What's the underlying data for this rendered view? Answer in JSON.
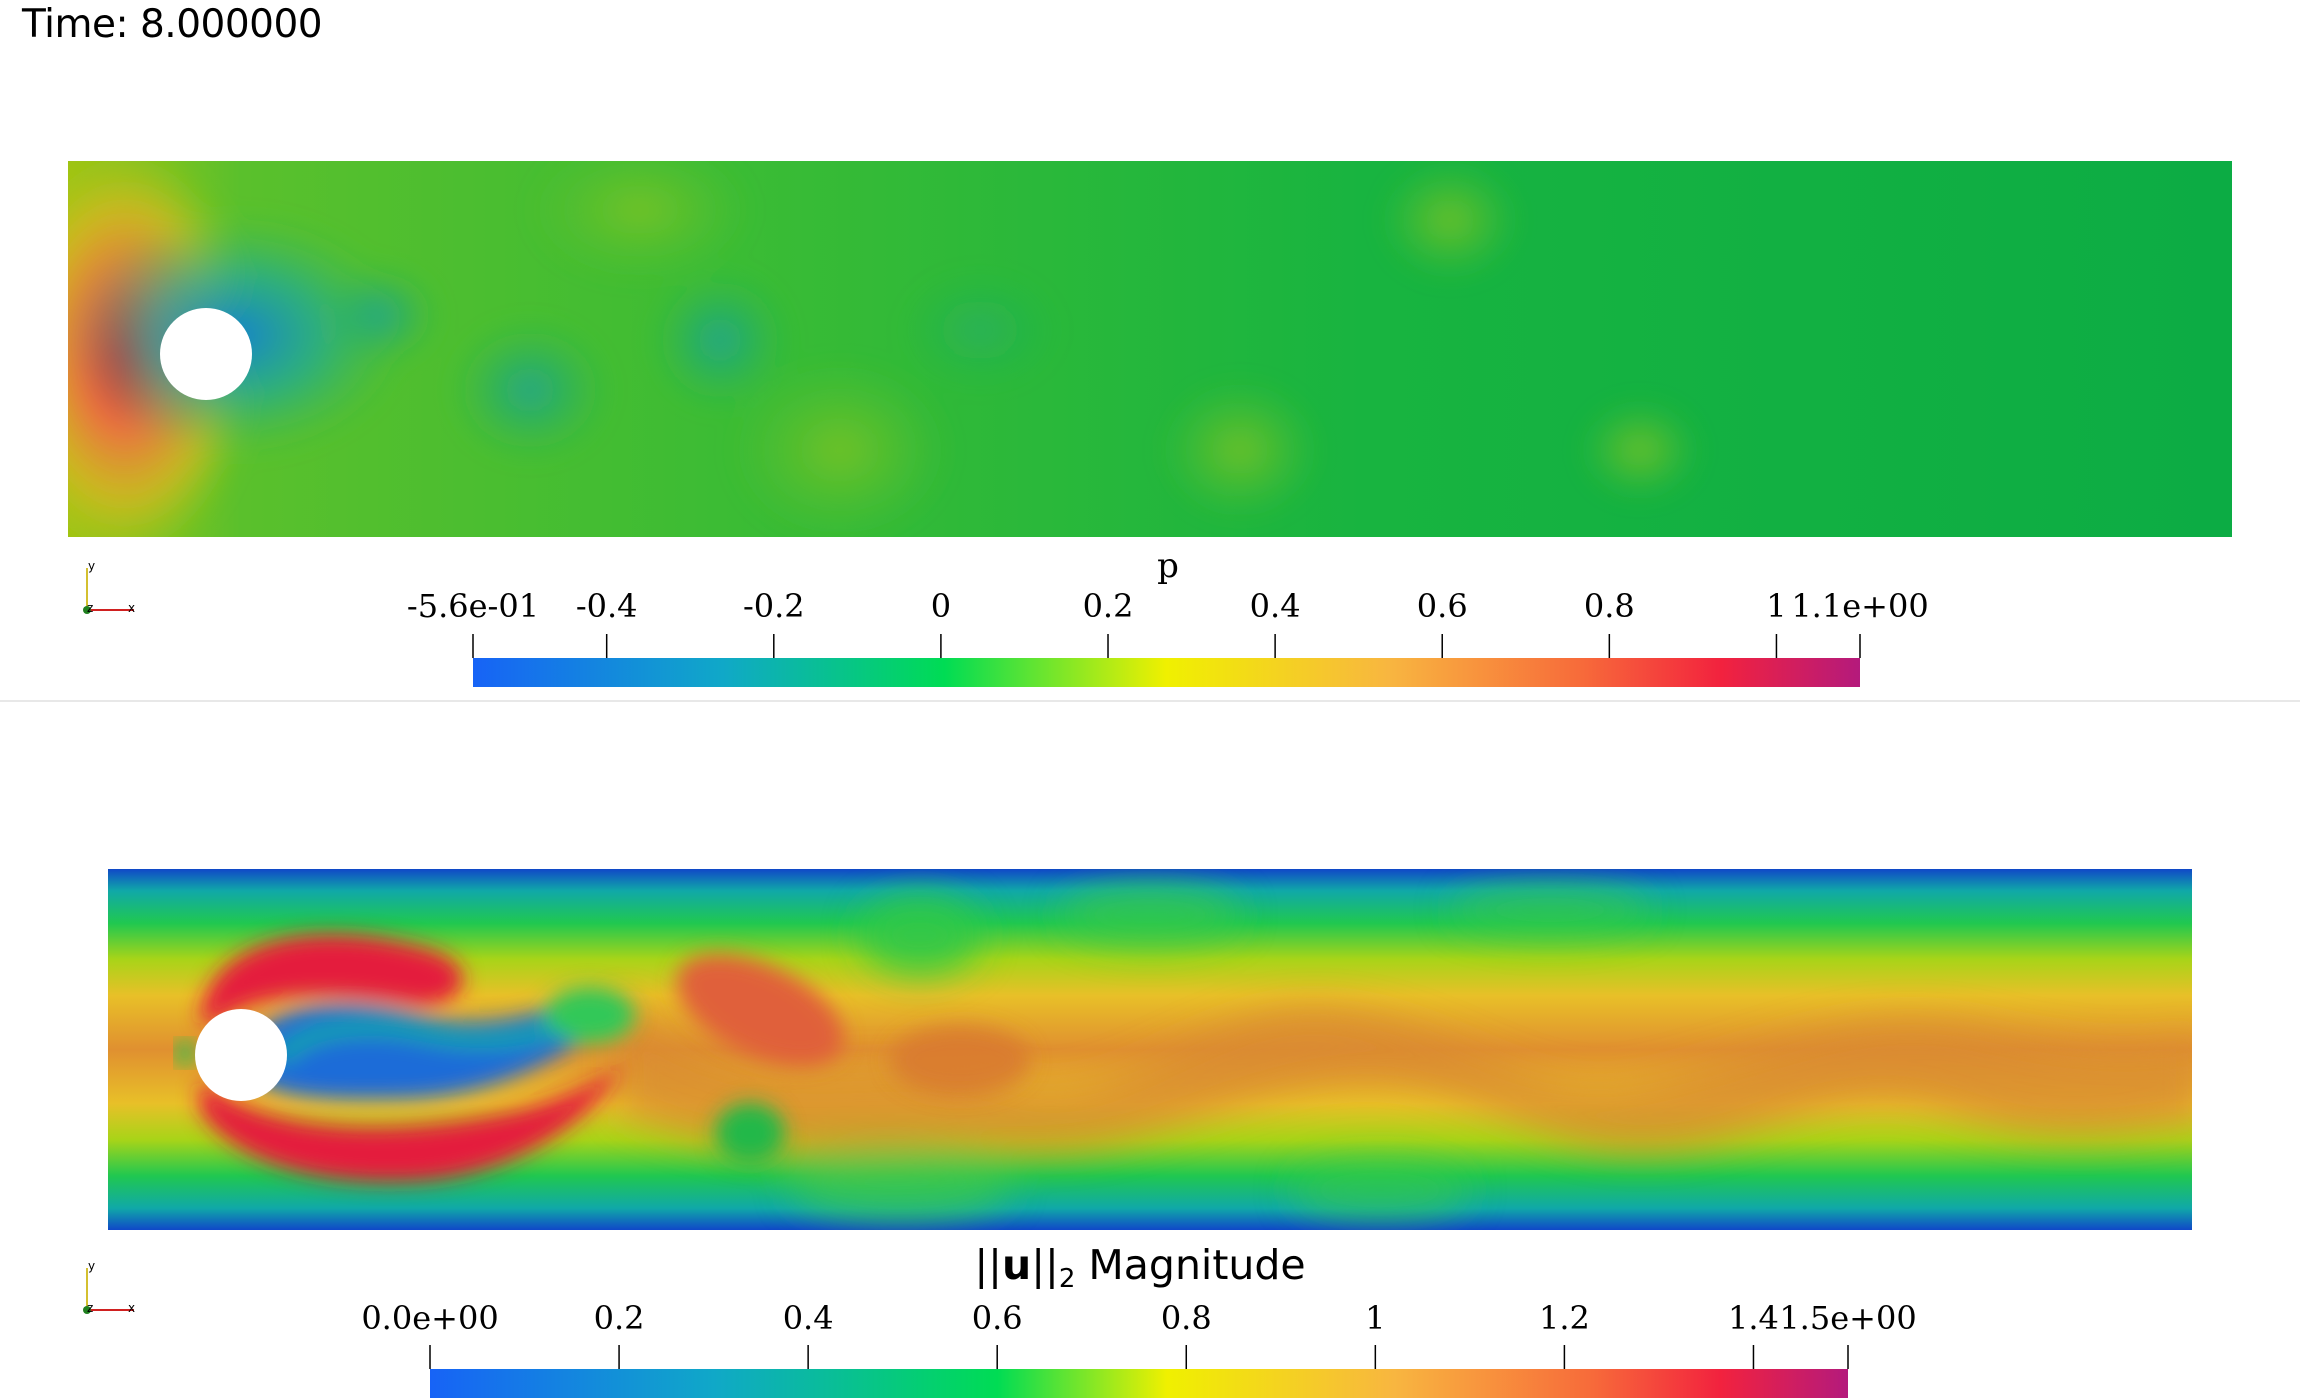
{
  "time_label": "Time: 8.000000",
  "colors": {
    "blue": "#1a6bf0",
    "green": "#00d44c",
    "yellow": "#f4f000",
    "orange": "#f79238",
    "red": "#f0203e",
    "magenta": "#b81878",
    "background": "#ffffff"
  },
  "views": [
    {
      "field": "pressure",
      "colorbar": {
        "title": "p",
        "range": [
          -0.56,
          1.1
        ],
        "ticks": [
          {
            "value": -0.56,
            "label": "-5.6e-01"
          },
          {
            "value": -0.4,
            "label": "-0.4"
          },
          {
            "value": -0.2,
            "label": "-0.2"
          },
          {
            "value": 0,
            "label": "0"
          },
          {
            "value": 0.2,
            "label": "0.2"
          },
          {
            "value": 0.4,
            "label": "0.4"
          },
          {
            "value": 0.6,
            "label": "0.6"
          },
          {
            "value": 0.8,
            "label": "0.8"
          },
          {
            "value": 1,
            "label": "1"
          },
          {
            "value": 1.1,
            "label": "1.1e+00"
          }
        ]
      },
      "axes": {
        "y": "y",
        "z": "z",
        "x": "x"
      }
    },
    {
      "field": "velocity_magnitude",
      "colorbar": {
        "title_prefix": "||",
        "title_bold": "u",
        "title_mid": "||",
        "title_sub": "2",
        "title_suffix": " Magnitude",
        "range": [
          0,
          1.5
        ],
        "ticks": [
          {
            "value": 0,
            "label": "0.0e+00"
          },
          {
            "value": 0.2,
            "label": "0.2"
          },
          {
            "value": 0.4,
            "label": "0.4"
          },
          {
            "value": 0.6,
            "label": "0.6"
          },
          {
            "value": 0.8,
            "label": "0.8"
          },
          {
            "value": 1,
            "label": "1"
          },
          {
            "value": 1.2,
            "label": "1.2"
          },
          {
            "value": 1.4,
            "label": "1.4"
          },
          {
            "value": 1.5,
            "label": "1.5e+00"
          }
        ]
      },
      "axes": {
        "y": "y",
        "z": "z",
        "x": "x"
      }
    }
  ]
}
